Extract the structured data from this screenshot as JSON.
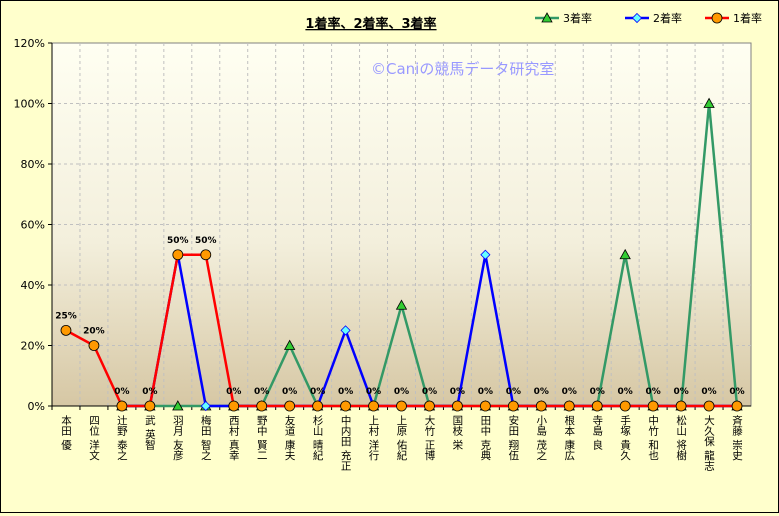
{
  "watermark": "©Caniの競馬データ研究室",
  "chart_data": {
    "type": "line",
    "title": "1着率、2着率、3着率",
    "xlabel": "",
    "ylabel": "",
    "ylim": [
      0,
      120
    ],
    "yticks": [
      "0%",
      "20%",
      "40%",
      "60%",
      "80%",
      "100%",
      "120%"
    ],
    "grid": true,
    "legend": "top-right",
    "categories": [
      "本田 優",
      "四位 洋文",
      "辻野 泰之",
      "武 英智",
      "羽月 友彦",
      "梅田 智之",
      "西村 真幸",
      "野中 賢二",
      "友道 康夫",
      "杉山 晴紀",
      "中内田 充正",
      "上村 洋行",
      "上原 佑紀",
      "大竹 正博",
      "国枝 栄",
      "田中 克典",
      "安田 翔伍",
      "小島 茂之",
      "根本 康広",
      "寺島 良",
      "手塚 貴久",
      "中竹 和也",
      "松山 将樹",
      "大久保 龍志",
      "斉藤 崇史"
    ],
    "series": [
      {
        "name": "3着率",
        "color": "#339966",
        "marker": "triangle",
        "values": [
          null,
          null,
          0,
          0,
          0,
          0,
          0,
          0,
          20,
          0,
          0,
          0,
          33.3,
          0,
          0,
          0,
          0,
          0,
          0,
          0,
          50,
          0,
          0,
          100,
          0
        ]
      },
      {
        "name": "2着率",
        "color": "#0000ff",
        "marker": "diamond",
        "values": [
          null,
          null,
          0,
          0,
          50,
          0,
          0,
          0,
          0,
          0,
          25,
          0,
          0,
          0,
          0,
          50,
          0,
          0,
          0,
          0,
          0,
          0,
          0,
          0,
          0
        ]
      },
      {
        "name": "1着率",
        "color": "#ff0000",
        "marker": "circle",
        "values": [
          25,
          20,
          0,
          0,
          50,
          50,
          0,
          0,
          0,
          0,
          0,
          0,
          0,
          0,
          0,
          0,
          0,
          0,
          0,
          0,
          0,
          0,
          0,
          0,
          0
        ]
      }
    ],
    "data_labels": [
      "25%",
      "20%",
      "0%",
      "0%",
      "50%",
      "50%",
      "0%",
      "0%",
      "0%",
      "0%",
      "0%",
      "0%",
      "0%",
      "0%",
      "0%",
      "0%",
      "0%",
      "0%",
      "0%",
      "0%",
      "0%",
      "0%",
      "0%",
      "0%",
      "0%"
    ]
  }
}
